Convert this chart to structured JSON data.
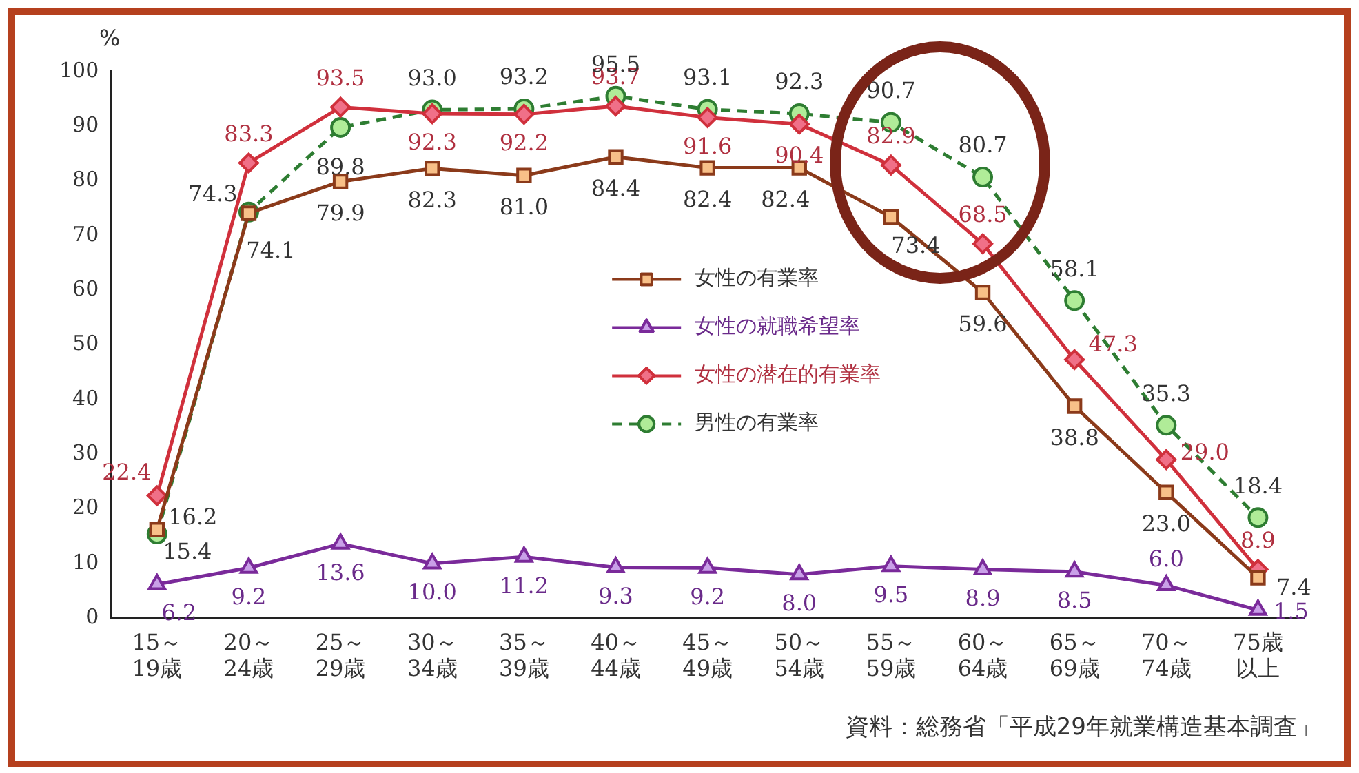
{
  "chart_data": {
    "type": "line",
    "ylabel": "%",
    "categories": [
      "15～19歳",
      "20～24歳",
      "25～29歳",
      "30～34歳",
      "35～39歳",
      "40～44歳",
      "45～49歳",
      "50～54歳",
      "55～59歳",
      "60～64歳",
      "65～69歳",
      "70～74歳",
      "75歳以上"
    ],
    "series": [
      {
        "name": "女性の有業率",
        "color": "#8b3a1a",
        "marker": "square",
        "line_style": "solid",
        "values": [
          16.2,
          74.1,
          79.9,
          82.3,
          81.0,
          84.4,
          82.4,
          82.4,
          73.4,
          59.6,
          38.8,
          23.0,
          7.4
        ],
        "value_labels": [
          "16.2",
          "74.1",
          "79.9",
          "82.3",
          "81.0",
          "84.4",
          "82.4",
          "82.4",
          "73.4",
          "59.6",
          "38.8",
          "23.0",
          "7.4"
        ]
      },
      {
        "name": "女性の就職希望率",
        "color": "#7a2a9a",
        "marker": "triangle",
        "line_style": "solid",
        "values": [
          6.2,
          9.2,
          13.6,
          10.0,
          11.2,
          9.3,
          9.2,
          8.0,
          9.5,
          8.9,
          8.5,
          6.0,
          1.5
        ],
        "value_labels": [
          "6.2",
          "9.2",
          "13.6",
          "10.0",
          "11.2",
          "9.3",
          "9.2",
          "8.0",
          "9.5",
          "8.9",
          "8.5",
          "6.0",
          "1.5"
        ]
      },
      {
        "name": "女性の潜在的有業率",
        "color": "#d0303c",
        "marker": "diamond",
        "line_style": "solid",
        "values": [
          22.4,
          83.3,
          93.5,
          92.3,
          92.2,
          93.7,
          91.6,
          90.4,
          82.9,
          68.5,
          47.3,
          29.0,
          8.9
        ],
        "value_labels": [
          "22.4",
          "83.3",
          "93.5",
          "92.3",
          "92.2",
          "93.7",
          "91.6",
          "90.4",
          "82.9",
          "68.5",
          "47.3",
          "29.0",
          "8.9"
        ]
      },
      {
        "name": "男性の有業率",
        "color": "#2e7d32",
        "marker": "circle",
        "line_style": "dashed",
        "values": [
          15.4,
          74.3,
          89.8,
          93.0,
          93.2,
          95.5,
          93.1,
          92.3,
          90.7,
          80.7,
          58.1,
          35.3,
          18.4
        ],
        "value_labels": [
          "15.4",
          "74.3",
          "89.8",
          "93.0",
          "93.2",
          "95.5",
          "93.1",
          "92.3",
          "90.7",
          "80.7",
          "58.1",
          "35.3",
          "18.4"
        ]
      }
    ],
    "ylim": [
      0,
      100
    ],
    "yticks": [
      0,
      10,
      20,
      30,
      40,
      50,
      60,
      70,
      80,
      90,
      100
    ],
    "grid": false,
    "legend": "center",
    "annotations": [
      "資料：総務省「平成29年就業構造基本調査」"
    ]
  }
}
